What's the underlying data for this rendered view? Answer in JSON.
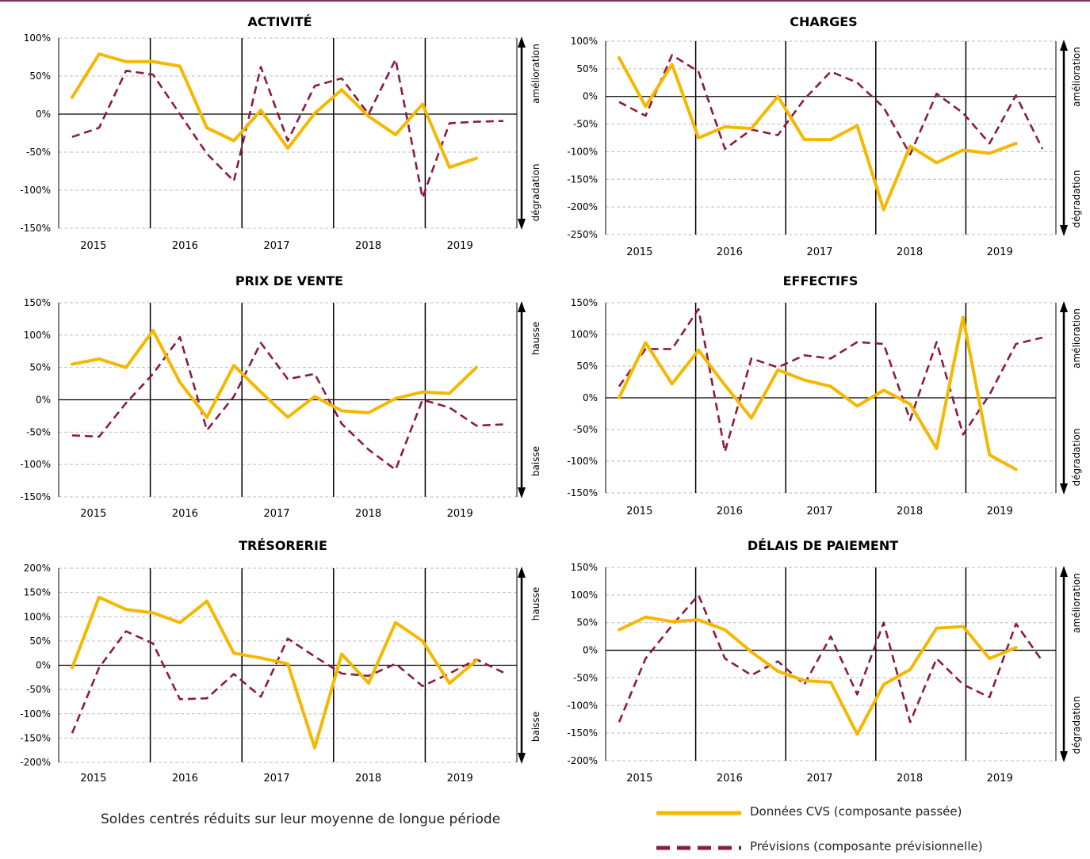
{
  "colors": {
    "actual": "#f5b800",
    "forecast": "#8b1a45",
    "axis": "#000000",
    "grid": "#bdbdbd",
    "frame_rule": "#7b2f5a"
  },
  "footer": {
    "note": "Soldes centrés réduits sur leur moyenne de longue période",
    "legend_actual": "Données CVS (composante passée)",
    "legend_forecast": "Prévisions (composante prévisionnelle)"
  },
  "chart_data": [
    {
      "type": "line",
      "title": "ACTIVITÉ",
      "ylim": [
        -150,
        100
      ],
      "yticks": [
        -150,
        -100,
        -50,
        0,
        50,
        100
      ],
      "tick_suffix": "%",
      "year_labels": [
        "2015",
        "2016",
        "2017",
        "2018",
        "2019"
      ],
      "side_top": "amélioration",
      "side_bottom": "dégradation",
      "series": [
        {
          "name": "Données CVS (composante passée)",
          "values": [
            22,
            79,
            69,
            69,
            63,
            -18,
            -35,
            5,
            -45,
            1,
            32,
            -3,
            -27,
            13,
            -70,
            -58
          ]
        },
        {
          "name": "Prévisions (composante prévisionnelle)",
          "values": [
            -30,
            -18,
            57,
            52,
            0,
            -52,
            -88,
            62,
            -35,
            37,
            47,
            0,
            72,
            -110,
            -12,
            -10,
            -9
          ]
        }
      ]
    },
    {
      "type": "line",
      "title": "CHARGES",
      "ylim": [
        -250,
        100
      ],
      "yticks": [
        -250,
        -200,
        -150,
        -100,
        -50,
        0,
        50,
        100
      ],
      "tick_suffix": "%",
      "year_labels": [
        "2015",
        "2016",
        "2017",
        "2018",
        "2019"
      ],
      "side_top": "amélioration",
      "side_bottom": "dégradation",
      "series": [
        {
          "name": "Données CVS (composante passée)",
          "values": [
            70,
            -18,
            58,
            -75,
            -55,
            -58,
            0,
            -78,
            -78,
            -53,
            -205,
            -90,
            -120,
            -97,
            -103,
            -85
          ]
        },
        {
          "name": "Prévisions (composante prévisionnelle)",
          "values": [
            -10,
            -35,
            75,
            45,
            -95,
            -60,
            -70,
            -5,
            45,
            25,
            -20,
            -105,
            5,
            -30,
            -85,
            2,
            -95
          ]
        }
      ]
    },
    {
      "type": "line",
      "title": "PRIX DE VENTE",
      "ylim": [
        -150,
        150
      ],
      "yticks": [
        -150,
        -100,
        -50,
        0,
        50,
        100,
        150
      ],
      "tick_suffix": "%",
      "year_labels": [
        "2015",
        "2016",
        "2017",
        "2018",
        "2019"
      ],
      "side_top": "hausse",
      "side_bottom": "baisse",
      "series": [
        {
          "name": "Données CVS (composante passée)",
          "values": [
            55,
            63,
            50,
            107,
            27,
            -27,
            53,
            12,
            -27,
            5,
            -17,
            -20,
            2,
            12,
            10,
            50
          ]
        },
        {
          "name": "Prévisions (composante prévisionnelle)",
          "values": [
            -55,
            -57,
            -5,
            40,
            97,
            -47,
            5,
            88,
            32,
            40,
            -37,
            -77,
            -108,
            0,
            -12,
            -40,
            -38
          ]
        }
      ]
    },
    {
      "type": "line",
      "title": "EFFECTIFS",
      "ylim": [
        -150,
        150
      ],
      "yticks": [
        -150,
        -100,
        -50,
        0,
        50,
        100,
        150
      ],
      "tick_suffix": "%",
      "year_labels": [
        "2015",
        "2016",
        "2017",
        "2018",
        "2019"
      ],
      "side_top": "amélioration",
      "side_bottom": "dégradation",
      "series": [
        {
          "name": "Données CVS (composante passée)",
          "values": [
            0,
            87,
            22,
            75,
            20,
            -32,
            44,
            28,
            18,
            -13,
            12,
            -10,
            -80,
            127,
            -90,
            -113
          ]
        },
        {
          "name": "Prévisions (composante prévisionnelle)",
          "values": [
            18,
            77,
            77,
            140,
            -85,
            62,
            48,
            67,
            62,
            88,
            85,
            -35,
            88,
            -58,
            5,
            85,
            95
          ]
        }
      ]
    },
    {
      "type": "line",
      "title": "TRÉSORERIE",
      "ylim": [
        -200,
        200
      ],
      "yticks": [
        -200,
        -150,
        -100,
        -50,
        0,
        50,
        100,
        150,
        200
      ],
      "tick_suffix": "%",
      "year_labels": [
        "2015",
        "2016",
        "2017",
        "2018",
        "2019"
      ],
      "side_top": "hausse",
      "side_bottom": "baisse",
      "series": [
        {
          "name": "Données CVS (composante passée)",
          "values": [
            -5,
            140,
            115,
            108,
            88,
            132,
            25,
            15,
            3,
            -170,
            23,
            -37,
            88,
            50,
            -37,
            10
          ]
        },
        {
          "name": "Prévisions (composante prévisionnelle)",
          "values": [
            -140,
            -5,
            70,
            45,
            -70,
            -68,
            -18,
            -65,
            55,
            18,
            -17,
            -22,
            3,
            -43,
            -17,
            12,
            -15
          ]
        }
      ]
    },
    {
      "type": "line",
      "title": "DÉLAIS DE PAIEMENT",
      "ylim": [
        -200,
        150
      ],
      "yticks": [
        -200,
        -150,
        -100,
        -50,
        0,
        50,
        100,
        150
      ],
      "tick_suffix": "%",
      "year_labels": [
        "2015",
        "2016",
        "2017",
        "2018",
        "2019"
      ],
      "side_top": "amélioration",
      "side_bottom": "dégradation",
      "series": [
        {
          "name": "Données CVS (composante passée)",
          "values": [
            37,
            60,
            52,
            55,
            37,
            -3,
            -38,
            -55,
            -58,
            -152,
            -62,
            -35,
            40,
            43,
            -15,
            5
          ]
        },
        {
          "name": "Prévisions (composante prévisionnelle)",
          "values": [
            -130,
            -15,
            45,
            100,
            -15,
            -45,
            -20,
            -62,
            25,
            -80,
            50,
            -130,
            -15,
            -62,
            -85,
            48,
            -20
          ]
        }
      ]
    }
  ]
}
